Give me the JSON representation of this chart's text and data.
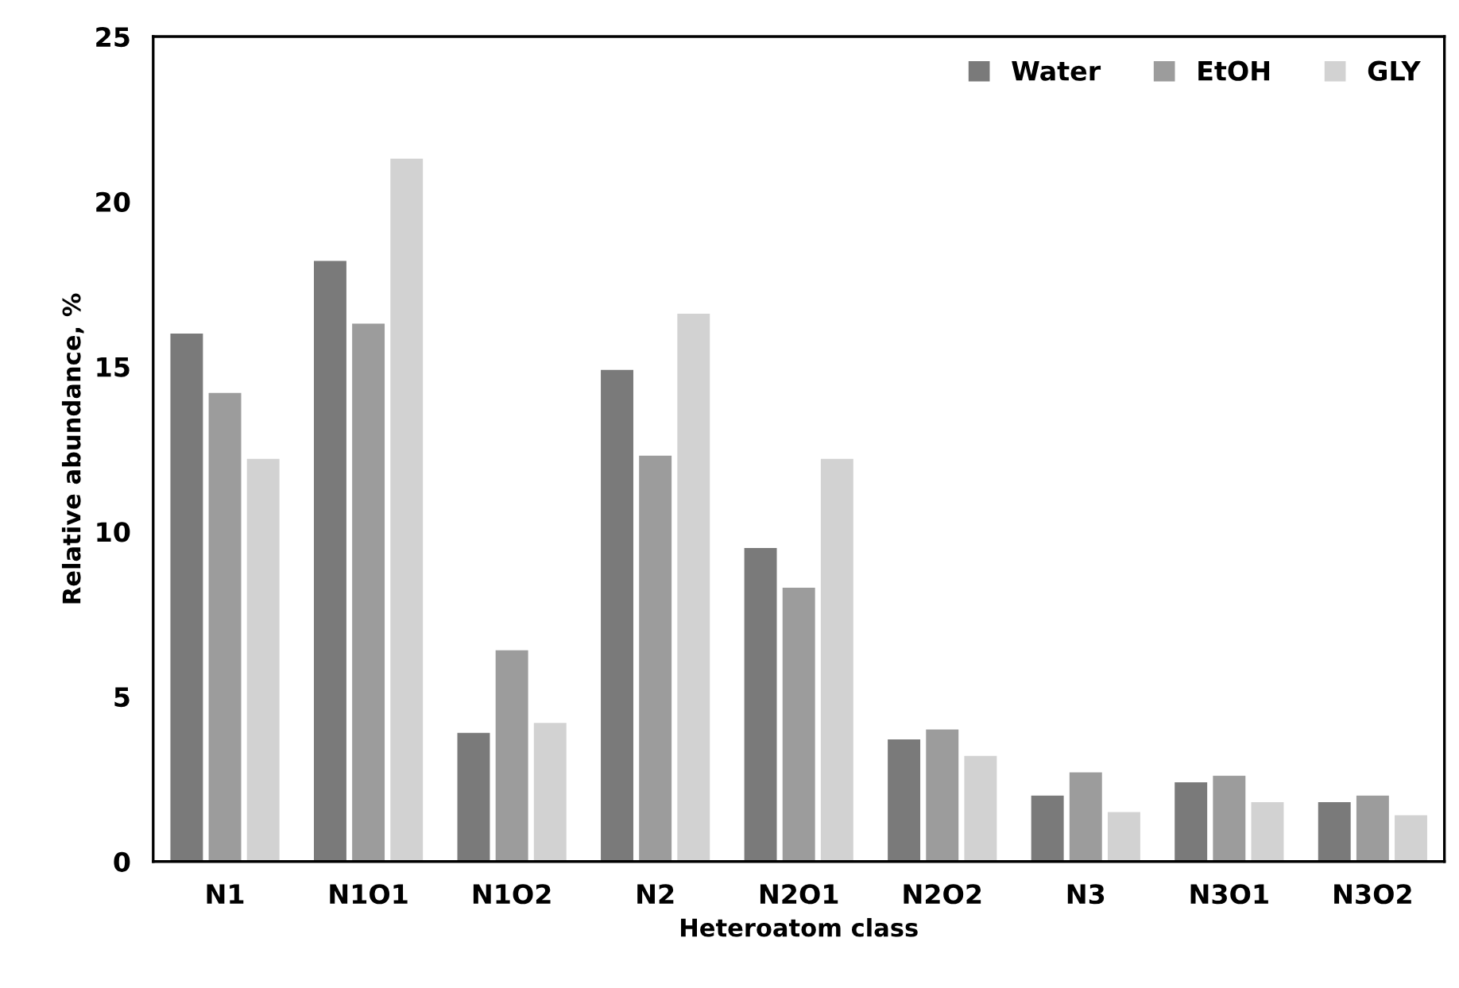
{
  "chart_data": {
    "type": "bar",
    "xlabel": "Heteroatom class",
    "ylabel": "Relative abundance, %",
    "categories": [
      "N1",
      "N1O1",
      "N1O2",
      "N2",
      "N2O1",
      "N2O2",
      "N3",
      "N3O1",
      "N3O2"
    ],
    "series": [
      {
        "name": "Water",
        "color": "#7a7a7a",
        "values": [
          16.0,
          18.2,
          3.9,
          14.9,
          9.5,
          3.7,
          2.0,
          2.4,
          1.8
        ]
      },
      {
        "name": "EtOH",
        "color": "#9c9c9c",
        "values": [
          14.2,
          16.3,
          6.4,
          12.3,
          8.3,
          4.0,
          2.7,
          2.6,
          2.0
        ]
      },
      {
        "name": "GLY",
        "color": "#d2d2d2",
        "values": [
          12.2,
          21.3,
          4.2,
          16.6,
          12.2,
          3.2,
          1.5,
          1.8,
          1.4
        ]
      }
    ],
    "ylim": [
      0,
      25
    ],
    "yticks": [
      0,
      5,
      10,
      15,
      20,
      25
    ],
    "grid": false,
    "legend": "top right"
  }
}
